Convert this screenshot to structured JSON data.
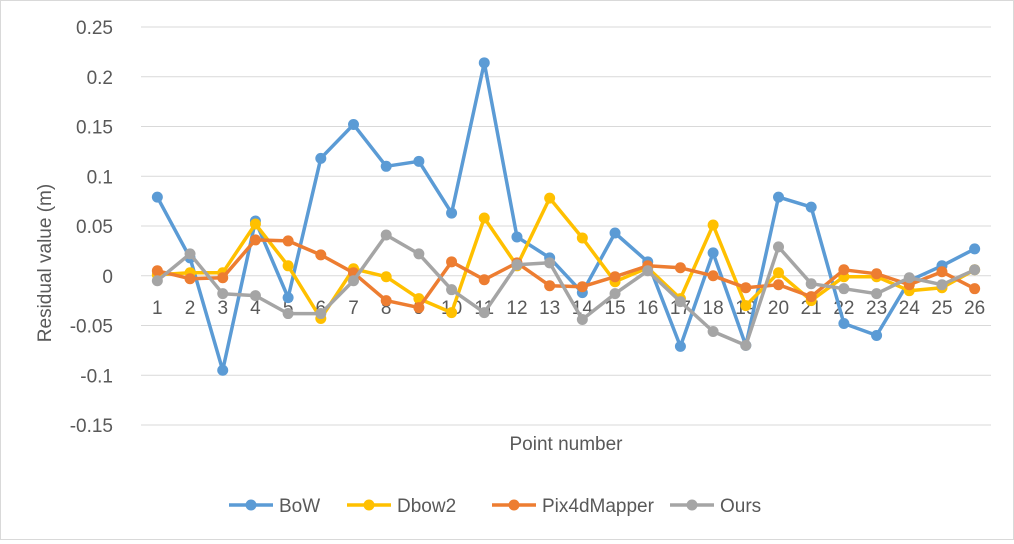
{
  "chart_data": {
    "type": "line",
    "title": "",
    "xlabel": "Point number",
    "ylabel": "Residual value (m)",
    "ylim": [
      -0.15,
      0.25
    ],
    "yticks": [
      0.25,
      0.2,
      0.15,
      0.1,
      0.05,
      0,
      -0.05,
      -0.1,
      -0.15
    ],
    "ytick_labels": [
      "0.25",
      "0.2",
      "0.15",
      "0.1",
      "0.05",
      "0",
      "-0.05",
      "-0.1",
      "-0.15"
    ],
    "categories": [
      "1",
      "2",
      "3",
      "4",
      "5",
      "6",
      "7",
      "8",
      "9",
      "10",
      "11",
      "12",
      "13",
      "14",
      "15",
      "16",
      "17",
      "18",
      "19",
      "20",
      "21",
      "22",
      "23",
      "24",
      "25",
      "26"
    ],
    "grid": true,
    "legend_position": "bottom",
    "series": [
      {
        "name": "BoW",
        "color": "#5b9bd5",
        "values": [
          0.079,
          0.018,
          -0.095,
          0.055,
          -0.022,
          0.118,
          0.152,
          0.11,
          0.115,
          0.063,
          0.214,
          0.039,
          0.018,
          -0.017,
          0.043,
          0.014,
          -0.071,
          0.023,
          -0.07,
          0.079,
          0.069,
          -0.048,
          -0.06,
          -0.005,
          0.01,
          0.027
        ]
      },
      {
        "name": "Dbow2",
        "color": "#ffc000",
        "values": [
          0.001,
          0.003,
          0.003,
          0.052,
          0.01,
          -0.043,
          0.007,
          -0.001,
          -0.023,
          -0.037,
          0.058,
          0.01,
          0.078,
          0.038,
          -0.006,
          0.008,
          -0.023,
          0.051,
          -0.03,
          0.003,
          -0.025,
          -0.001,
          -0.001,
          -0.015,
          -0.012,
          0.006
        ]
      },
      {
        "name": "Pix4dMapper",
        "color": "#ed7d31",
        "values": [
          0.005,
          -0.003,
          -0.002,
          0.036,
          0.035,
          0.021,
          0.003,
          -0.025,
          -0.032,
          0.014,
          -0.004,
          0.013,
          -0.01,
          -0.011,
          -0.001,
          0.01,
          0.008,
          0.0,
          -0.012,
          -0.009,
          -0.021,
          0.006,
          0.002,
          -0.009,
          0.004,
          -0.013
        ]
      },
      {
        "name": "Ours",
        "color": "#a5a5a5",
        "values": [
          -0.005,
          0.022,
          -0.018,
          -0.02,
          -0.038,
          -0.038,
          -0.005,
          0.041,
          0.022,
          -0.014,
          -0.037,
          0.011,
          0.013,
          -0.044,
          -0.018,
          0.005,
          -0.026,
          -0.056,
          -0.07,
          0.029,
          -0.008,
          -0.013,
          -0.018,
          -0.002,
          -0.009,
          0.006
        ]
      }
    ]
  }
}
